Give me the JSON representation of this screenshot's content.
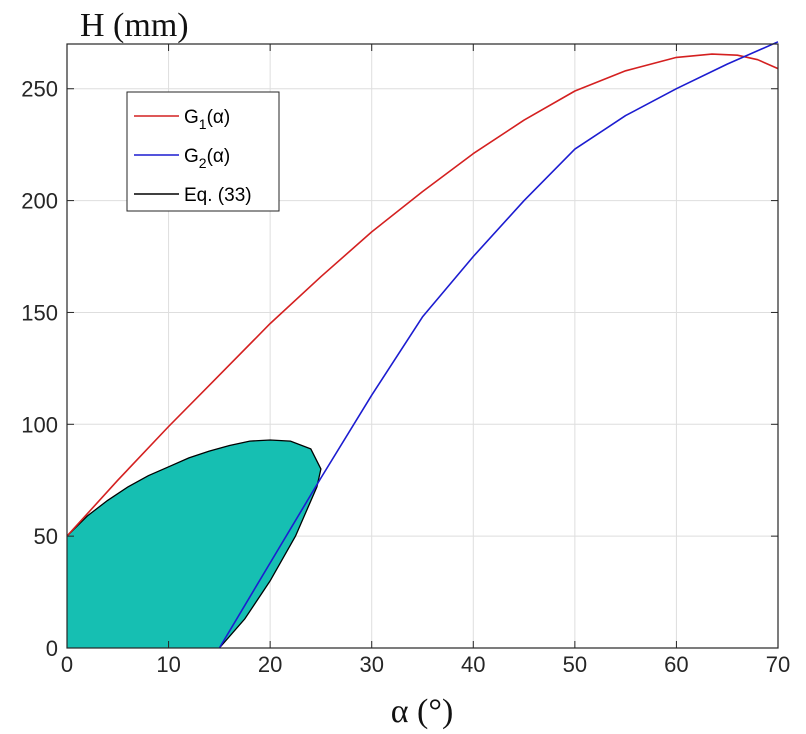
{
  "chart_data": {
    "type": "line",
    "ylabel": "H (mm)",
    "xlabel": "α (°)",
    "xlim": [
      0,
      70
    ],
    "ylim": [
      0,
      270
    ],
    "xticks": [
      0,
      10,
      20,
      30,
      40,
      50,
      60,
      70
    ],
    "yticks": [
      0,
      50,
      100,
      150,
      200,
      250
    ],
    "grid": true,
    "legend_position": "top-left",
    "series": [
      {
        "id": "g1",
        "legend_main": "G",
        "legend_sub": "1",
        "legend_arg": "(α)",
        "color": "#d42020",
        "x": [
          0,
          5,
          10,
          15,
          20,
          25,
          30,
          35,
          40,
          45,
          50,
          55,
          60,
          63.5,
          66,
          68,
          70
        ],
        "y": [
          50,
          75,
          99,
          122,
          145,
          166,
          186,
          204,
          221,
          236,
          249,
          258,
          264,
          265.5,
          265,
          263,
          259
        ]
      },
      {
        "id": "g2",
        "legend_main": "G",
        "legend_sub": "2",
        "legend_arg": "(α)",
        "color": "#1c1cd0",
        "x": [
          15,
          20,
          25,
          30,
          35,
          40,
          45,
          50,
          55,
          60,
          65,
          70
        ],
        "y": [
          0,
          38,
          76,
          113,
          148,
          175,
          200,
          223,
          238,
          250,
          261,
          271
        ]
      },
      {
        "id": "eq33",
        "legend_label": "Eq. (33)",
        "color": "#000000",
        "fill": "#16bfb2",
        "x": [
          0,
          2,
          4,
          6,
          8,
          10,
          12,
          14,
          16,
          18,
          20,
          22,
          24,
          25,
          24.6,
          22.5,
          20,
          17.5,
          15,
          0
        ],
        "y": [
          50,
          59,
          66,
          72,
          77,
          81,
          85,
          88,
          90.5,
          92.5,
          93,
          92.5,
          89,
          80,
          72,
          50,
          30,
          13,
          0,
          0
        ]
      }
    ]
  }
}
